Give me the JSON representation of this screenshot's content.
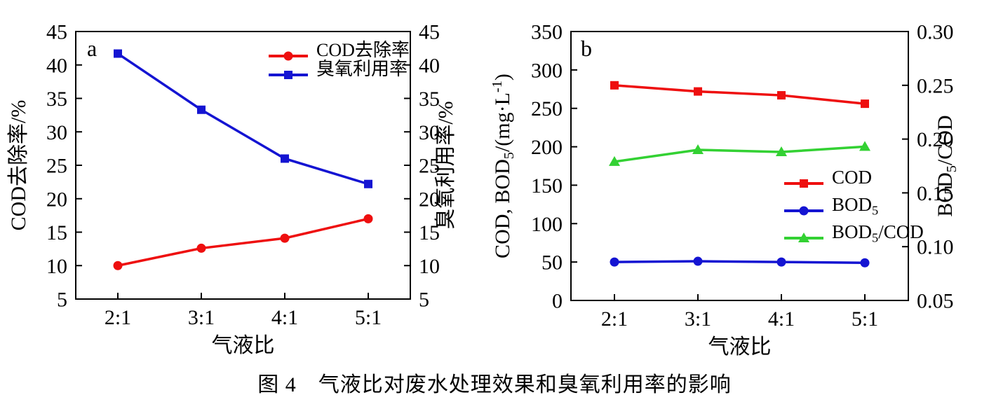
{
  "figure": {
    "caption": "图 4　气液比对废水处理效果和臭氧利用率的影响"
  },
  "chart_data": [
    {
      "type": "line",
      "panel_label": "a",
      "categories": [
        "2:1",
        "3:1",
        "4:1",
        "5:1"
      ],
      "xlabel": "气液比",
      "left_axis": {
        "label": "COD去除率/%",
        "min": 5,
        "max": 45,
        "tick_step": 5,
        "decimals": 0
      },
      "right_axis": {
        "label": "臭氧利用率/%",
        "min": 5,
        "max": 45,
        "tick_step": 5,
        "decimals": 0
      },
      "grid": false,
      "legend_position": "top-right-inside",
      "series": [
        {
          "name": "COD去除率",
          "color": "#ee0f0f",
          "marker": "circle",
          "axis": "left",
          "values": [
            10.0,
            12.6,
            14.1,
            17.0
          ]
        },
        {
          "name": "臭氧利用率",
          "color": "#1414d2",
          "marker": "square",
          "axis": "left",
          "values": [
            41.7,
            33.3,
            26.0,
            22.2
          ]
        }
      ]
    },
    {
      "type": "line",
      "panel_label": "b",
      "categories": [
        "2:1",
        "3:1",
        "4:1",
        "5:1"
      ],
      "xlabel": "气液比",
      "left_axis": {
        "label": "COD, BOD_{5}/(mg·L^{-1})",
        "min": 0,
        "max": 350,
        "tick_step": 50,
        "decimals": 0
      },
      "right_axis": {
        "label": "BOD_{5}/COD",
        "min": 0.05,
        "max": 0.3,
        "tick_step": 0.05,
        "decimals": 2
      },
      "grid": false,
      "legend_position": "middle-right-inside",
      "series": [
        {
          "name": "COD",
          "color": "#ee0f0f",
          "marker": "square",
          "axis": "left",
          "values": [
            280,
            272,
            267,
            256
          ]
        },
        {
          "name": "BOD_{5}",
          "color": "#1414d2",
          "marker": "circle",
          "axis": "left",
          "values": [
            50,
            51,
            50,
            49
          ]
        },
        {
          "name": "BOD_{5}/COD",
          "color": "#33d133",
          "marker": "triangle",
          "axis": "right",
          "values": [
            0.179,
            0.19,
            0.188,
            0.193
          ]
        }
      ]
    }
  ]
}
